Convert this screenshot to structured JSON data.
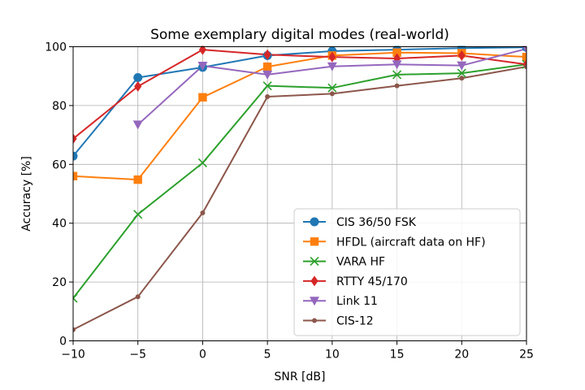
{
  "chart_data": {
    "type": "line",
    "title": "Some exemplary digital modes (real-world)",
    "xlabel": "SNR [dB]",
    "ylabel": "Accuracy [%]",
    "xlim": [
      -10,
      25
    ],
    "ylim": [
      0,
      100
    ],
    "xticks": [
      -10,
      -5,
      0,
      5,
      10,
      15,
      20,
      25
    ],
    "xtick_labels": [
      "−10",
      "−5",
      "0",
      "5",
      "10",
      "15",
      "20",
      "25"
    ],
    "yticks": [
      0,
      20,
      40,
      60,
      80,
      100
    ],
    "ytick_labels": [
      "0",
      "20",
      "40",
      "60",
      "80",
      "100"
    ],
    "grid": true,
    "legend_position": "lower-right",
    "series": [
      {
        "name": "CIS 36/50 FSK",
        "color": "#1f77b4",
        "marker": "circle",
        "x": [
          -10,
          -5,
          0,
          5,
          10,
          15,
          20,
          25
        ],
        "values": [
          62.8,
          89.5,
          93,
          97,
          98.5,
          99,
          99.5,
          99.8
        ]
      },
      {
        "name": "HFDL (aircraft data on HF)",
        "color": "#ff7f0e",
        "marker": "square",
        "x": [
          -10,
          -5,
          0,
          5,
          10,
          15,
          20,
          25
        ],
        "values": [
          56,
          54.8,
          82.8,
          93.2,
          97,
          98,
          97.8,
          96.5
        ]
      },
      {
        "name": "VARA HF",
        "color": "#2ca02c",
        "marker": "x",
        "x": [
          -10,
          -5,
          0,
          5,
          10,
          15,
          20,
          25
        ],
        "values": [
          14.5,
          43,
          60.5,
          86.7,
          86,
          90.5,
          91,
          94
        ]
      },
      {
        "name": "RTTY 45/170",
        "color": "#d62728",
        "marker": "diamond",
        "x": [
          -10,
          -5,
          0,
          5,
          10,
          15,
          20,
          25
        ],
        "values": [
          68.7,
          86.5,
          99,
          97.3,
          96.5,
          96,
          97,
          94
        ]
      },
      {
        "name": "Link 11",
        "color": "#9467bd",
        "marker": "triangle-down",
        "x": [
          -5,
          0,
          5,
          10,
          15,
          20,
          25
        ],
        "values": [
          73.5,
          93.5,
          90.5,
          93.3,
          94,
          93.6,
          99.3
        ]
      },
      {
        "name": "CIS-12",
        "color": "#8c564b",
        "marker": "dot",
        "x": [
          -10,
          -5,
          0,
          5,
          10,
          15,
          20,
          25
        ],
        "values": [
          3.8,
          15,
          43.5,
          83,
          84,
          86.7,
          89.3,
          93.2
        ]
      }
    ]
  }
}
